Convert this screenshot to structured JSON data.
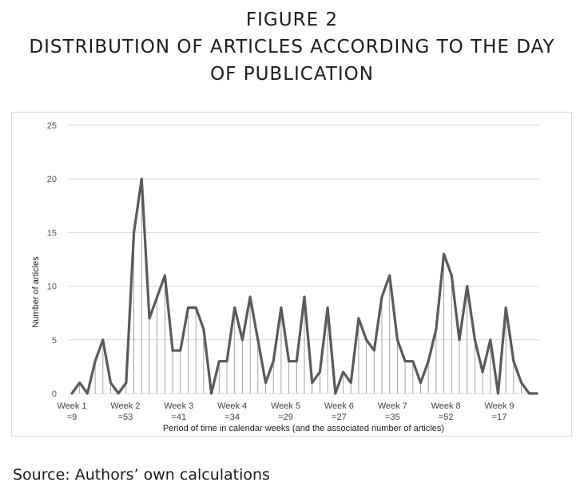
{
  "title_lines": [
    "FIGURE 2",
    "DISTRIBUTION OF ARTICLES ACCORDING TO THE DAY",
    "OF PUBLICATION"
  ],
  "source": "Source: Authors’ own calculations",
  "chart_data": {
    "type": "line",
    "ylabel": "Number of articles",
    "xlabel": "Period of time in calendar weeks (and the associated number of articles)",
    "ylim": [
      0,
      25
    ],
    "yticks": [
      0,
      5,
      10,
      15,
      20,
      25
    ],
    "grid": true,
    "week_labels": [
      {
        "week": "Week 1",
        "count": "=9"
      },
      {
        "week": "Week 2",
        "count": "=53"
      },
      {
        "week": "Week 3",
        "count": "=41"
      },
      {
        "week": "Week 4",
        "count": "=34"
      },
      {
        "week": "Week 5",
        "count": "=29"
      },
      {
        "week": "Week 6",
        "count": "=27"
      },
      {
        "week": "Week 7",
        "count": "=35"
      },
      {
        "week": "Week 8",
        "count": "=52"
      },
      {
        "week": "Week 9",
        "count": "=17"
      }
    ],
    "values": [
      0,
      1,
      0,
      3,
      5,
      1,
      0,
      1,
      15,
      20,
      7,
      9,
      11,
      4,
      4,
      8,
      8,
      6,
      0,
      3,
      3,
      8,
      5,
      9,
      5,
      1,
      3,
      8,
      3,
      3,
      9,
      1,
      2,
      8,
      0,
      2,
      1,
      7,
      5,
      4,
      9,
      11,
      5,
      3,
      3,
      1,
      3,
      6,
      13,
      11,
      5,
      10,
      5,
      2,
      5,
      0,
      8,
      3,
      1,
      0,
      0
    ]
  }
}
